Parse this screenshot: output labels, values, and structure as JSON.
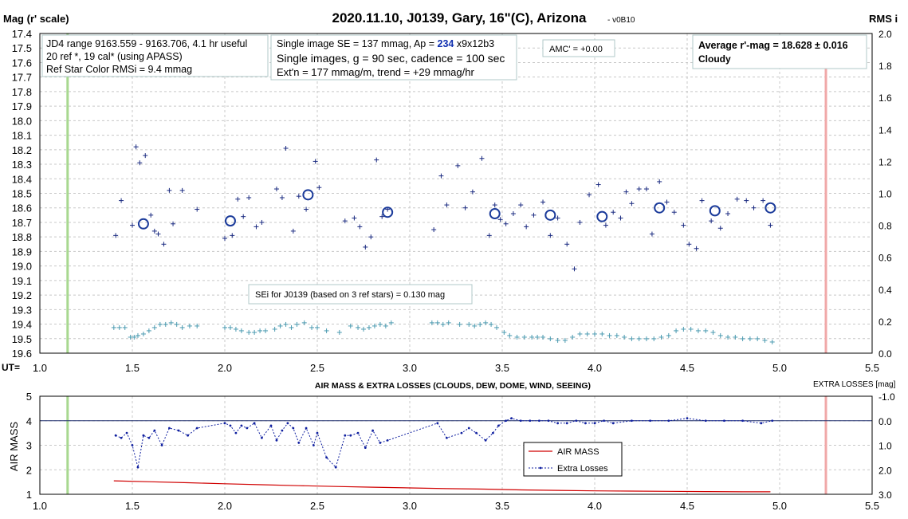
{
  "chart_data": [
    {
      "type": "scatter",
      "title": "2020.11.10, J0139, Gary, 16\"(C), Arizona",
      "version": "- v0B10",
      "ylabel": "Mag (r' scale)",
      "y2label": "RMS i",
      "xlabel": "UT=",
      "xlim": [
        1.0,
        5.5
      ],
      "ylim": [
        17.4,
        19.6
      ],
      "y_reversed": true,
      "y2lim": [
        0.0,
        2.0
      ],
      "x_ticks": [
        "1.0",
        "1.5",
        "2.0",
        "2.5",
        "3.0",
        "3.5",
        "4.0",
        "4.5",
        "5.0",
        "5.5"
      ],
      "y_ticks": [
        "17.4",
        "17.5",
        "17.6",
        "17.7",
        "17.8",
        "17.9",
        "18.0",
        "18.1",
        "18.2",
        "18.3",
        "18.4",
        "18.5",
        "18.6",
        "18.7",
        "18.8",
        "18.9",
        "19.0",
        "19.1",
        "19.2",
        "19.3",
        "19.4",
        "19.5",
        "19.6"
      ],
      "y2_ticks": [
        "2.0",
        "1.8",
        "1.6",
        "1.4",
        "1.2",
        "1.0",
        "0.8",
        "0.6",
        "0.4",
        "0.2",
        "0.0"
      ],
      "grid": true,
      "start_line_ut": 1.15,
      "end_line_ut": 5.25,
      "annotations": {
        "box1": [
          "JD4 range 9163.559 - 9163.706, 4.1 hr useful",
          "20 ref *, 19 cal* (using APASS)",
          "Ref Star Color RMSi = 9.4 mmag"
        ],
        "box2_line1_pre": "Single image SE = 137 mmag, Ap = ",
        "box2_line1_ap": "234",
        "box2_line1_post": " x9x12b3",
        "box2_line2": "Single images, g = 90 sec, cadence = 100 sec",
        "box2_line3": "Ext'n = 177 mmag/m, trend = +29 mmag/hr",
        "amc": "AMC' = +0.00",
        "avg_line1": "Average r'-mag =  18.628 ± 0.016",
        "avg_line2": "Cloudy",
        "sei": "SEi for J0139 (based on 3 ref stars) = 0.130 mag"
      },
      "fit_level": 18.63,
      "fit_segments": [
        [
          1.4,
          1.85
        ],
        [
          1.98,
          2.22
        ],
        [
          2.25,
          2.53
        ],
        [
          2.6,
          2.93
        ],
        [
          3.1,
          3.2
        ],
        [
          3.23,
          4.97
        ]
      ],
      "series": [
        {
          "name": "",
          "kind": "individual-mag",
          "x": [
            1.41,
            1.44,
            1.5,
            1.52,
            1.54,
            1.57,
            1.6,
            1.62,
            1.64,
            1.67,
            1.7,
            1.72,
            1.77,
            1.85,
            2.0,
            2.04,
            2.07,
            2.1,
            2.13,
            2.17,
            2.2,
            2.28,
            2.31,
            2.33,
            2.37,
            2.4,
            2.44,
            2.49,
            2.51,
            2.65,
            2.7,
            2.73,
            2.76,
            2.79,
            2.82,
            2.85,
            2.88,
            3.13,
            3.17,
            3.2,
            3.26,
            3.3,
            3.34,
            3.39,
            3.43,
            3.46,
            3.49,
            3.52,
            3.56,
            3.6,
            3.63,
            3.67,
            3.72,
            3.76,
            3.8,
            3.85,
            3.89,
            3.92,
            3.97,
            4.02,
            4.06,
            4.1,
            4.14,
            4.17,
            4.2,
            4.24,
            4.28,
            4.31,
            4.35,
            4.39,
            4.43,
            4.48,
            4.51,
            4.55,
            4.58,
            4.63,
            4.68,
            4.72,
            4.77,
            4.82,
            4.86,
            4.91,
            4.95
          ],
          "y": [
            18.79,
            18.55,
            18.72,
            18.18,
            18.29,
            18.24,
            18.65,
            18.76,
            18.78,
            18.85,
            18.48,
            18.71,
            18.48,
            18.61,
            18.81,
            18.79,
            18.54,
            18.66,
            18.53,
            18.73,
            18.7,
            18.47,
            18.53,
            18.19,
            18.76,
            18.52,
            18.61,
            18.28,
            18.46,
            18.69,
            18.67,
            18.73,
            18.87,
            18.8,
            18.27,
            18.66,
            18.61,
            18.75,
            18.38,
            18.58,
            18.31,
            18.6,
            18.49,
            18.26,
            18.79,
            18.58,
            18.68,
            18.71,
            18.64,
            18.58,
            18.73,
            18.65,
            18.56,
            18.79,
            18.67,
            18.85,
            19.02,
            18.7,
            18.51,
            18.44,
            18.72,
            18.63,
            18.67,
            18.49,
            18.57,
            18.47,
            18.47,
            18.78,
            18.42,
            18.56,
            18.63,
            18.72,
            18.85,
            18.88,
            18.55,
            18.69,
            18.74,
            18.64,
            18.54,
            18.55,
            18.6,
            18.55,
            18.72
          ]
        },
        {
          "name": "",
          "kind": "binned-mag",
          "x": [
            1.56,
            2.03,
            2.45,
            2.88,
            3.46,
            3.76,
            4.04,
            4.35,
            4.65,
            4.95
          ],
          "y": [
            18.71,
            18.69,
            18.51,
            18.63,
            18.64,
            18.65,
            18.66,
            18.6,
            18.62,
            18.6
          ]
        },
        {
          "name": "",
          "kind": "rms",
          "x": [
            1.4,
            1.43,
            1.46,
            1.49,
            1.51,
            1.53,
            1.56,
            1.59,
            1.62,
            1.65,
            1.68,
            1.71,
            1.74,
            1.77,
            1.81,
            1.85,
            2.0,
            2.03,
            2.06,
            2.09,
            2.13,
            2.16,
            2.19,
            2.22,
            2.27,
            2.3,
            2.33,
            2.36,
            2.39,
            2.43,
            2.47,
            2.5,
            2.55,
            2.62,
            2.68,
            2.72,
            2.75,
            2.78,
            2.81,
            2.84,
            2.87,
            2.9,
            3.12,
            3.15,
            3.18,
            3.21,
            3.27,
            3.32,
            3.35,
            3.38,
            3.41,
            3.44,
            3.47,
            3.51,
            3.54,
            3.58,
            3.62,
            3.66,
            3.69,
            3.72,
            3.76,
            3.8,
            3.84,
            3.88,
            3.92,
            3.96,
            4.0,
            4.04,
            4.08,
            4.12,
            4.16,
            4.2,
            4.24,
            4.28,
            4.32,
            4.36,
            4.4,
            4.44,
            4.48,
            4.52,
            4.56,
            4.6,
            4.64,
            4.68,
            4.72,
            4.76,
            4.8,
            4.84,
            4.88,
            4.92,
            4.96
          ],
          "values": [
            0.16,
            0.16,
            0.16,
            0.1,
            0.1,
            0.11,
            0.12,
            0.14,
            0.16,
            0.18,
            0.18,
            0.19,
            0.18,
            0.16,
            0.17,
            0.17,
            0.16,
            0.16,
            0.15,
            0.14,
            0.13,
            0.13,
            0.14,
            0.14,
            0.15,
            0.17,
            0.18,
            0.16,
            0.18,
            0.19,
            0.16,
            0.16,
            0.14,
            0.13,
            0.17,
            0.16,
            0.15,
            0.16,
            0.17,
            0.18,
            0.17,
            0.19,
            0.19,
            0.19,
            0.18,
            0.19,
            0.18,
            0.18,
            0.17,
            0.18,
            0.19,
            0.18,
            0.16,
            0.13,
            0.11,
            0.1,
            0.1,
            0.1,
            0.1,
            0.1,
            0.09,
            0.08,
            0.08,
            0.1,
            0.12,
            0.12,
            0.12,
            0.12,
            0.11,
            0.11,
            0.1,
            0.09,
            0.09,
            0.09,
            0.09,
            0.1,
            0.11,
            0.14,
            0.15,
            0.15,
            0.14,
            0.14,
            0.13,
            0.11,
            0.1,
            0.1,
            0.09,
            0.09,
            0.09,
            0.08,
            0.07
          ]
        }
      ]
    },
    {
      "type": "line",
      "title": "AIR MASS & EXTRA LOSSES (CLOUDS, DEW, DOME, WIND, SEEING)",
      "ylabel": "AIR MASS",
      "y2label": "EXTRA LOSSES [mag]",
      "xlim": [
        1.0,
        5.5
      ],
      "ylim": [
        1,
        5
      ],
      "y2lim": [
        -1.0,
        3.0
      ],
      "y2_reversed": true,
      "x_ticks": [
        "1.0",
        "1.5",
        "2.0",
        "2.5",
        "3.0",
        "3.5",
        "4.0",
        "4.5",
        "5.0",
        "5.5"
      ],
      "y_ticks": [
        "5",
        "4",
        "3",
        "2",
        "1"
      ],
      "y2_ticks": [
        "-1.0",
        "0.0",
        "1.0",
        "2.0",
        "3.0"
      ],
      "reference_line_loss": 0.0,
      "legend": {
        "placement": "center-right",
        "entries": [
          "AIR MASS",
          "Extra Losses"
        ]
      },
      "series": [
        {
          "name": "AIR MASS",
          "color": "#d00000",
          "x": [
            1.4,
            1.6,
            1.8,
            2.0,
            2.2,
            2.4,
            2.6,
            2.8,
            3.0,
            3.2,
            3.4,
            3.6,
            3.8,
            4.0,
            4.2,
            4.4,
            4.6,
            4.8,
            4.95
          ],
          "values": [
            1.55,
            1.51,
            1.47,
            1.43,
            1.39,
            1.35,
            1.32,
            1.29,
            1.26,
            1.23,
            1.21,
            1.18,
            1.16,
            1.14,
            1.13,
            1.12,
            1.11,
            1.1,
            1.1
          ]
        },
        {
          "name": "Extra Losses",
          "color": "#1020a0",
          "x": [
            1.41,
            1.44,
            1.47,
            1.5,
            1.53,
            1.56,
            1.59,
            1.62,
            1.66,
            1.7,
            1.75,
            1.8,
            1.85,
            2.0,
            2.03,
            2.06,
            2.09,
            2.12,
            2.16,
            2.2,
            2.25,
            2.28,
            2.31,
            2.34,
            2.37,
            2.4,
            2.44,
            2.48,
            2.5,
            2.55,
            2.6,
            2.65,
            2.68,
            2.72,
            2.76,
            2.8,
            2.84,
            2.88,
            3.15,
            3.2,
            3.28,
            3.32,
            3.36,
            3.41,
            3.45,
            3.48,
            3.52,
            3.55,
            3.6,
            3.65,
            3.7,
            3.75,
            3.8,
            3.85,
            3.9,
            3.95,
            4.0,
            4.05,
            4.1,
            4.2,
            4.3,
            4.4,
            4.5,
            4.6,
            4.7,
            4.8,
            4.9,
            4.96
          ],
          "values": [
            0.6,
            0.7,
            0.5,
            1.0,
            1.9,
            0.6,
            0.7,
            0.4,
            1.0,
            0.3,
            0.4,
            0.6,
            0.3,
            0.1,
            0.2,
            0.5,
            0.2,
            0.3,
            0.1,
            0.7,
            0.2,
            0.8,
            0.4,
            0.1,
            0.3,
            0.9,
            0.3,
            1.0,
            0.5,
            1.5,
            1.9,
            0.6,
            0.6,
            0.5,
            1.1,
            0.4,
            0.9,
            0.8,
            0.1,
            0.7,
            0.5,
            0.3,
            0.5,
            0.8,
            0.5,
            0.2,
            0.0,
            -0.1,
            0.0,
            0.0,
            0.0,
            0.0,
            0.1,
            0.1,
            0.0,
            0.1,
            0.1,
            0.0,
            0.1,
            0.0,
            0.0,
            0.0,
            -0.1,
            0.0,
            0.0,
            0.0,
            0.1,
            0.0
          ]
        }
      ]
    }
  ]
}
